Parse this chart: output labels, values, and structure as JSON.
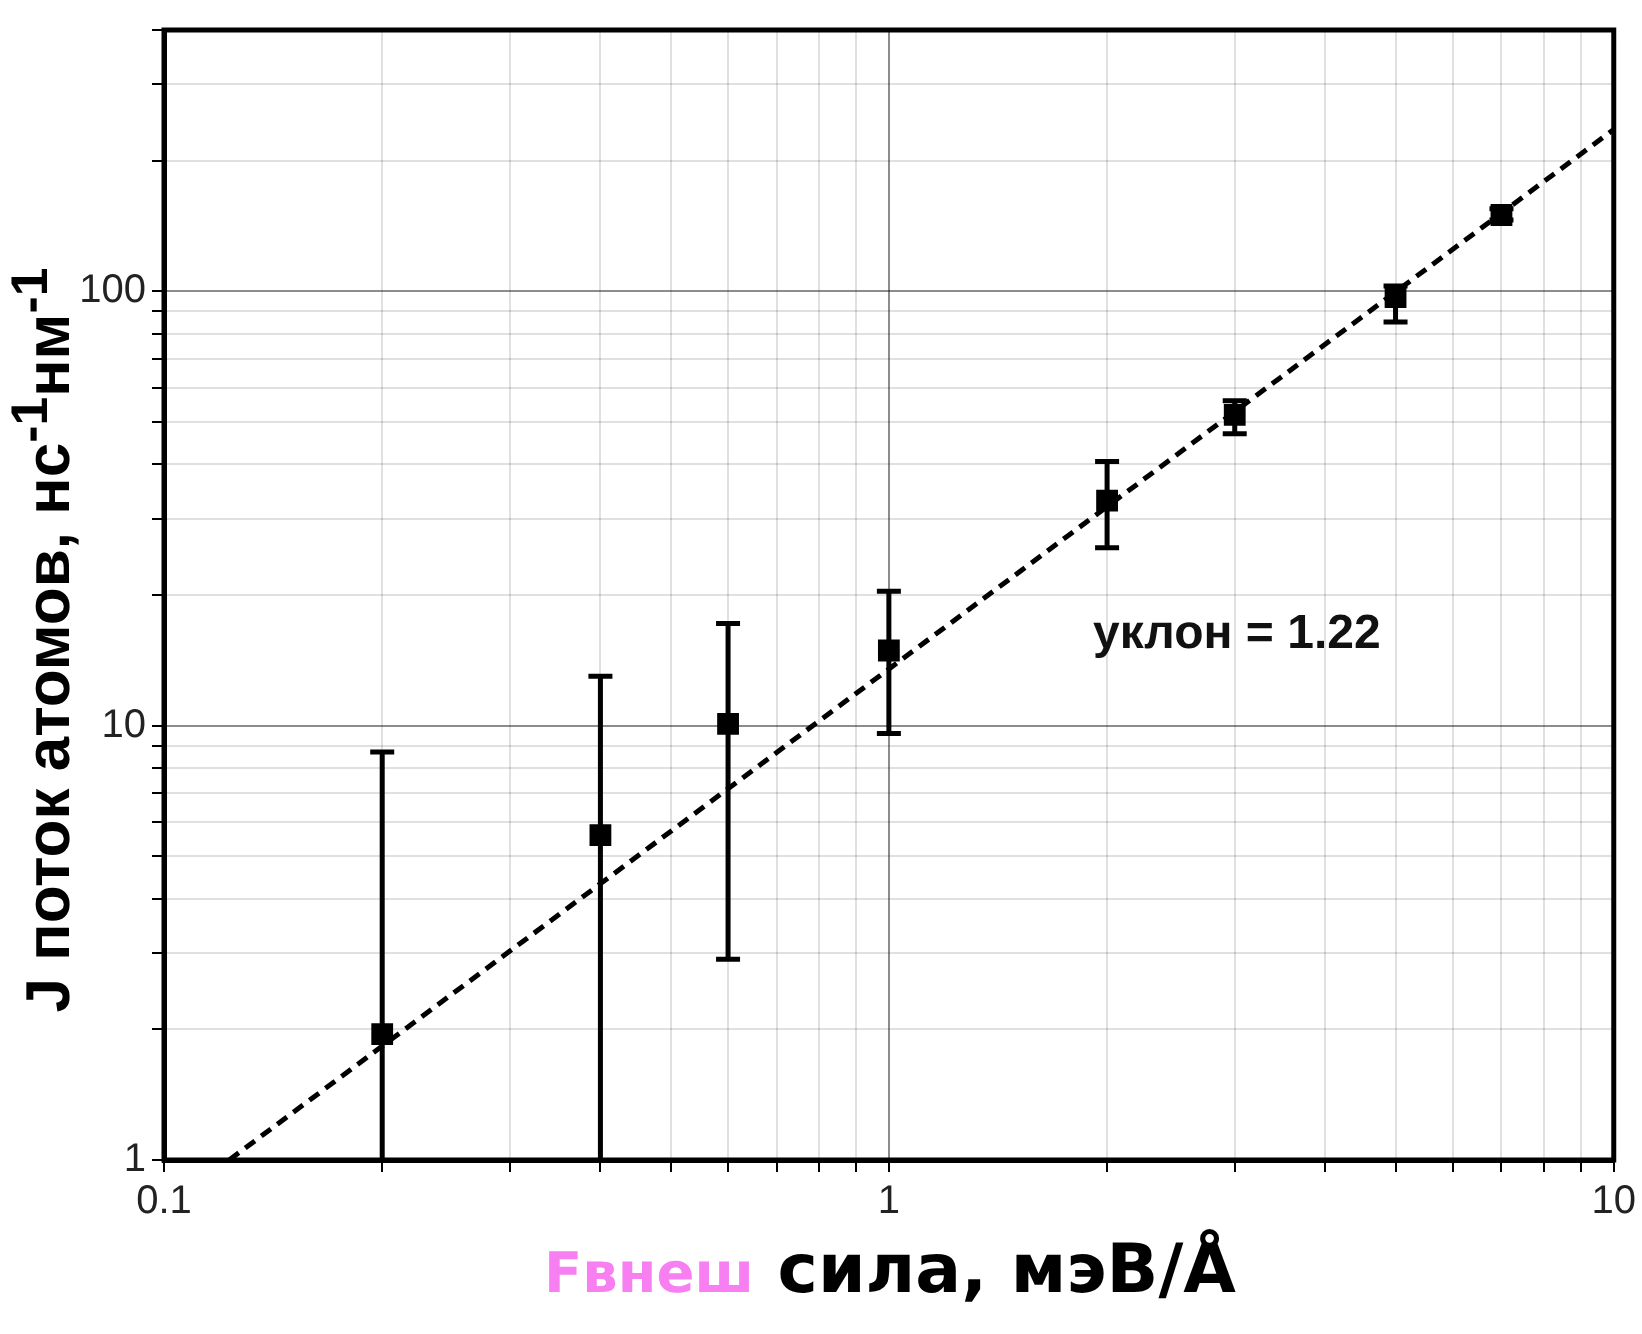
{
  "chart_data": {
    "type": "scatter",
    "xlabel": "Fвнеш сила, мэВ/Å",
    "ylabel": "J поток атомов, нс$^{-1}$нм$^{-1}$",
    "log": "xy",
    "grid": true,
    "legend": false,
    "marker": "square",
    "xlim": [
      0.1,
      10
    ],
    "ylim": [
      1,
      400
    ],
    "xticks": [
      0.1,
      {
        "value": 0.2,
        "label": null
      },
      {
        "value": 0.3,
        "label": null
      },
      {
        "value": 0.4,
        "label": null
      },
      {
        "value": 0.5,
        "label": null
      },
      {
        "value": 0.6,
        "label": null
      },
      {
        "value": 0.7,
        "label": null
      },
      {
        "value": 0.8,
        "label": null
      },
      {
        "value": 0.9,
        "label": null
      },
      1,
      {
        "value": 2,
        "label": null
      },
      {
        "value": 3,
        "label": null
      },
      {
        "value": 4,
        "label": null
      },
      {
        "value": 5,
        "label": null
      },
      {
        "value": 6,
        "label": null
      },
      {
        "value": 7,
        "label": null
      },
      {
        "value": 8,
        "label": null
      },
      {
        "value": 9,
        "label": null
      },
      10
    ],
    "yticks": [
      1,
      {
        "value": 2,
        "label": null
      },
      {
        "value": 3,
        "label": null
      },
      {
        "value": 4,
        "label": null
      },
      {
        "value": 5,
        "label": null
      },
      {
        "value": 6,
        "label": null
      },
      {
        "value": 7,
        "label": null
      },
      {
        "value": 8,
        "label": null
      },
      {
        "value": 9,
        "label": null
      },
      10,
      {
        "value": 20,
        "label": null
      },
      {
        "value": 30,
        "label": null
      },
      {
        "value": 40,
        "label": null
      },
      {
        "value": 50,
        "label": null
      },
      {
        "value": 60,
        "label": null
      },
      {
        "value": 70,
        "label": null
      },
      {
        "value": 80,
        "label": null
      },
      {
        "value": 90,
        "label": null
      },
      100,
      {
        "value": 200,
        "label": null
      },
      {
        "value": 300,
        "label": null
      },
      {
        "value": 400,
        "label": null
      }
    ],
    "series": [
      {
        "color": "#000000",
        "x": [
          0.2,
          0.4,
          0.6,
          1,
          2,
          3,
          5,
          7
        ],
        "values": [
          1.95,
          5.6,
          10.1,
          14.9,
          33,
          52,
          97,
          150
        ],
        "errors": [
          [
            1,
            8.7
          ],
          [
            1,
            13
          ],
          [
            2.9,
            17.2
          ],
          [
            9.6,
            20.4
          ],
          [
            25.7,
            40.6
          ],
          [
            47,
            56
          ],
          [
            85,
            103
          ],
          [
            146,
            155
          ]
        ]
      },
      {
        "type": "line",
        "color": "#000000",
        "line_style": "dashed",
        "marker": "none",
        "x": [
          0.123,
          10
        ],
        "values": [
          1,
          236
        ]
      }
    ],
    "annotations": [
      "уклон = 1.22"
    ]
  }
}
